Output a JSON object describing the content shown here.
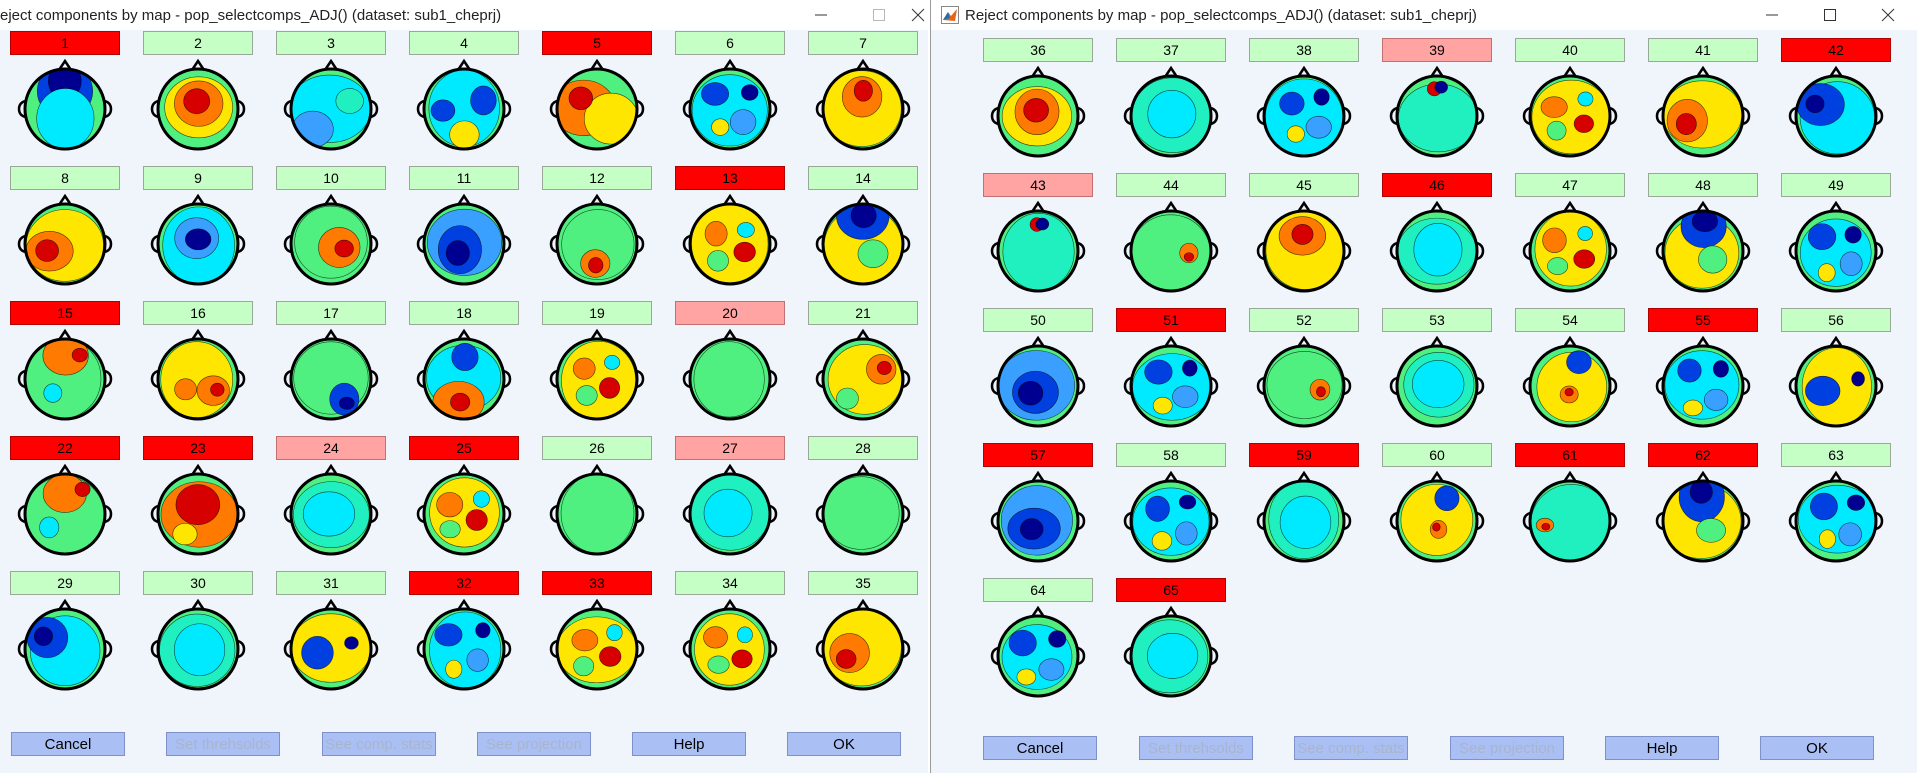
{
  "windows": [
    {
      "title": "eject components by map - pop_selectcomps_ADJ() (dataset: sub1_cheprj)",
      "show_icon": false,
      "components": [
        {
          "label": "1",
          "status": "reject",
          "pattern": "frontal"
        },
        {
          "label": "2",
          "status": "accept",
          "pattern": "central-hot"
        },
        {
          "label": "3",
          "status": "accept",
          "pattern": "diffuse-cool"
        },
        {
          "label": "4",
          "status": "accept",
          "pattern": "bilateral-blue"
        },
        {
          "label": "5",
          "status": "reject",
          "pattern": "split-warm"
        },
        {
          "label": "6",
          "status": "accept",
          "pattern": "blue-patches"
        },
        {
          "label": "7",
          "status": "accept",
          "pattern": "front-hot"
        },
        {
          "label": "8",
          "status": "accept",
          "pattern": "left-hot"
        },
        {
          "label": "9",
          "status": "accept",
          "pattern": "central-blue"
        },
        {
          "label": "10",
          "status": "accept",
          "pattern": "right-hot"
        },
        {
          "label": "11",
          "status": "accept",
          "pattern": "deep-blue"
        },
        {
          "label": "12",
          "status": "accept",
          "pattern": "occipital-hot"
        },
        {
          "label": "13",
          "status": "reject",
          "pattern": "mottled-warm"
        },
        {
          "label": "14",
          "status": "accept",
          "pattern": "band-blue-front"
        },
        {
          "label": "15",
          "status": "reject",
          "pattern": "front-warm-patches"
        },
        {
          "label": "16",
          "status": "accept",
          "pattern": "warm-right"
        },
        {
          "label": "17",
          "status": "accept",
          "pattern": "right-post-blue"
        },
        {
          "label": "18",
          "status": "accept",
          "pattern": "post-warm-blue-front"
        },
        {
          "label": "19",
          "status": "accept",
          "pattern": "mottled-warm"
        },
        {
          "label": "20",
          "status": "prob",
          "pattern": "flat"
        },
        {
          "label": "21",
          "status": "accept",
          "pattern": "right-hot-yellow"
        },
        {
          "label": "22",
          "status": "reject",
          "pattern": "front-warm-patches"
        },
        {
          "label": "23",
          "status": "reject",
          "pattern": "warm-wide"
        },
        {
          "label": "24",
          "status": "prob",
          "pattern": "flat-cool"
        },
        {
          "label": "25",
          "status": "reject",
          "pattern": "mottled-warm"
        },
        {
          "label": "26",
          "status": "accept",
          "pattern": "flat"
        },
        {
          "label": "27",
          "status": "prob",
          "pattern": "flat-cool"
        },
        {
          "label": "28",
          "status": "accept",
          "pattern": "flat"
        },
        {
          "label": "29",
          "status": "accept",
          "pattern": "left-blue"
        },
        {
          "label": "30",
          "status": "accept",
          "pattern": "flat-cool"
        },
        {
          "label": "31",
          "status": "accept",
          "pattern": "right-focal-blue"
        },
        {
          "label": "32",
          "status": "reject",
          "pattern": "blue-patches"
        },
        {
          "label": "33",
          "status": "reject",
          "pattern": "mottled-warm"
        },
        {
          "label": "34",
          "status": "accept",
          "pattern": "mottled-warm"
        },
        {
          "label": "35",
          "status": "accept",
          "pattern": "left-hot"
        }
      ],
      "buttons": [
        {
          "label": "Cancel",
          "enabled": true
        },
        {
          "label": "Set threhsolds",
          "enabled": false
        },
        {
          "label": "See comp. stats",
          "enabled": false
        },
        {
          "label": "See projection",
          "enabled": false
        },
        {
          "label": "Help",
          "enabled": true
        },
        {
          "label": "OK",
          "enabled": true
        }
      ]
    },
    {
      "title": "Reject components by map - pop_selectcomps_ADJ() (dataset: sub1_cheprj)",
      "show_icon": true,
      "components": [
        {
          "label": "36",
          "status": "accept",
          "pattern": "central-hot"
        },
        {
          "label": "37",
          "status": "accept",
          "pattern": "flat-cool"
        },
        {
          "label": "38",
          "status": "accept",
          "pattern": "blue-patches"
        },
        {
          "label": "39",
          "status": "prob",
          "pattern": "frontal-focal"
        },
        {
          "label": "40",
          "status": "accept",
          "pattern": "mottled-warm"
        },
        {
          "label": "41",
          "status": "accept",
          "pattern": "left-hot"
        },
        {
          "label": "42",
          "status": "reject",
          "pattern": "left-blue"
        },
        {
          "label": "43",
          "status": "prob",
          "pattern": "frontal-focal"
        },
        {
          "label": "44",
          "status": "accept",
          "pattern": "right-focal-red"
        },
        {
          "label": "45",
          "status": "reject-accept",
          "pattern": "front-hot"
        },
        {
          "label": "46",
          "status": "reject",
          "pattern": "flat-cool"
        },
        {
          "label": "47",
          "status": "accept",
          "pattern": "mottled-warm"
        },
        {
          "label": "48",
          "status": "accept",
          "pattern": "band-blue-front"
        },
        {
          "label": "49",
          "status": "accept",
          "pattern": "blue-patches"
        },
        {
          "label": "50",
          "status": "accept",
          "pattern": "deep-blue"
        },
        {
          "label": "51",
          "status": "reject",
          "pattern": "blue-patches"
        },
        {
          "label": "52",
          "status": "accept",
          "pattern": "right-focal-red"
        },
        {
          "label": "53",
          "status": "accept",
          "pattern": "flat-cool"
        },
        {
          "label": "54",
          "status": "accept",
          "pattern": "central-focal-red"
        },
        {
          "label": "55",
          "status": "reject",
          "pattern": "blue-patches"
        },
        {
          "label": "56",
          "status": "accept",
          "pattern": "right-focal-blue"
        },
        {
          "label": "57",
          "status": "reject",
          "pattern": "deep-blue"
        },
        {
          "label": "58",
          "status": "accept",
          "pattern": "blue-patches"
        },
        {
          "label": "59",
          "status": "reject",
          "pattern": "flat-cool"
        },
        {
          "label": "60",
          "status": "accept",
          "pattern": "central-focal-red"
        },
        {
          "label": "61",
          "status": "reject",
          "pattern": "left-focal-red"
        },
        {
          "label": "62",
          "status": "reject",
          "pattern": "band-blue-front"
        },
        {
          "label": "63",
          "status": "accept",
          "pattern": "blue-patches"
        },
        {
          "label": "64",
          "status": "accept",
          "pattern": "blue-patches"
        },
        {
          "label": "65",
          "status": "reject",
          "pattern": "flat-cool"
        }
      ],
      "buttons": [
        {
          "label": "Cancel",
          "enabled": true
        },
        {
          "label": "Set threhsolds",
          "enabled": false
        },
        {
          "label": "See comp. stats",
          "enabled": false
        },
        {
          "label": "See projection",
          "enabled": false
        },
        {
          "label": "Help",
          "enabled": true
        },
        {
          "label": "OK",
          "enabled": true
        }
      ]
    }
  ],
  "colors": {
    "accept": "#c5ffc5",
    "reject": "#ff0000",
    "prob": "#ffa3a3",
    "button": "#aac0f5",
    "background": "#f0f4fb"
  },
  "icons": {
    "minimize": "minimize-icon",
    "maximize": "maximize-icon",
    "close": "close-icon",
    "app": "matlab-icon"
  }
}
